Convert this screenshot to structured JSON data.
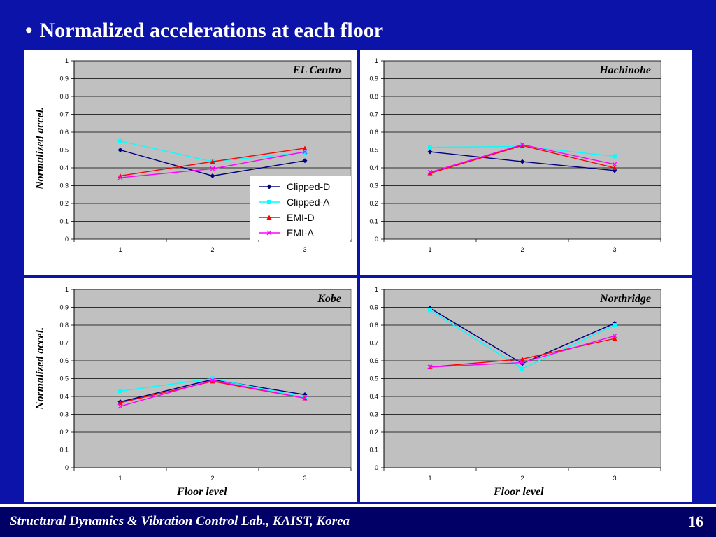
{
  "slide": {
    "title": "Normalized accelerations at each floor",
    "footer": "Structural Dynamics & Vibration Control Lab., KAIST, Korea",
    "page_number": "16",
    "y_axis_label": "Normalized accel.",
    "x_axis_label": "Floor level"
  },
  "colors": {
    "background": "#0b13a8",
    "footer_bg": "#000066",
    "plot_bg": "#c0c0c0"
  },
  "legend": {
    "entries": [
      "Clipped-D",
      "Clipped-A",
      "EMI-D",
      "EMI-A"
    ]
  },
  "chart_data": [
    {
      "type": "line",
      "title": "EL Centro",
      "categories": [
        "1",
        "2",
        "3"
      ],
      "ylim": [
        0,
        1
      ],
      "yticks": [
        "0",
        "0.1",
        "0.2",
        "0.3",
        "0.4",
        "0.5",
        "0.6",
        "0.7",
        "0.8",
        "0.9",
        "1"
      ],
      "grid": true,
      "legend_position": "bottom-right",
      "series": [
        {
          "name": "Clipped-D",
          "color": "#000080",
          "marker": "diamond",
          "values": [
            0.5,
            0.355,
            0.44
          ]
        },
        {
          "name": "Clipped-A",
          "color": "#00ffff",
          "marker": "square",
          "values": [
            0.55,
            0.435,
            0.485
          ]
        },
        {
          "name": "EMI-D",
          "color": "#ff0000",
          "marker": "triangle",
          "values": [
            0.355,
            0.435,
            0.51
          ]
        },
        {
          "name": "EMI-A",
          "color": "#ff00ff",
          "marker": "x",
          "values": [
            0.345,
            0.395,
            0.49
          ]
        }
      ]
    },
    {
      "type": "line",
      "title": "Hachinohe",
      "categories": [
        "1",
        "2",
        "3"
      ],
      "ylim": [
        0,
        1
      ],
      "yticks": [
        "0",
        "0.1",
        "0.2",
        "0.3",
        "0.4",
        "0.5",
        "0.6",
        "0.7",
        "0.8",
        "0.9",
        "1"
      ],
      "grid": true,
      "series": [
        {
          "name": "Clipped-D",
          "color": "#000080",
          "marker": "diamond",
          "values": [
            0.49,
            0.435,
            0.385
          ]
        },
        {
          "name": "Clipped-A",
          "color": "#00ffff",
          "marker": "square",
          "values": [
            0.515,
            0.52,
            0.465
          ]
        },
        {
          "name": "EMI-D",
          "color": "#ff0000",
          "marker": "triangle",
          "values": [
            0.37,
            0.525,
            0.4
          ]
        },
        {
          "name": "EMI-A",
          "color": "#ff00ff",
          "marker": "x",
          "values": [
            0.375,
            0.53,
            0.42
          ]
        }
      ]
    },
    {
      "type": "line",
      "title": "Kobe",
      "categories": [
        "1",
        "2",
        "3"
      ],
      "ylim": [
        0,
        1
      ],
      "yticks": [
        "0",
        "0.1",
        "0.2",
        "0.3",
        "0.4",
        "0.5",
        "0.6",
        "0.7",
        "0.8",
        "0.9",
        "1"
      ],
      "grid": true,
      "series": [
        {
          "name": "Clipped-D",
          "color": "#000080",
          "marker": "diamond",
          "values": [
            0.37,
            0.495,
            0.41
          ]
        },
        {
          "name": "Clipped-A",
          "color": "#00ffff",
          "marker": "square",
          "values": [
            0.43,
            0.5,
            0.395
          ]
        },
        {
          "name": "EMI-D",
          "color": "#ff0000",
          "marker": "triangle",
          "values": [
            0.365,
            0.485,
            0.39
          ]
        },
        {
          "name": "EMI-A",
          "color": "#ff00ff",
          "marker": "x",
          "values": [
            0.345,
            0.49,
            0.39
          ]
        }
      ]
    },
    {
      "type": "line",
      "title": "Northridge",
      "categories": [
        "1",
        "2",
        "3"
      ],
      "ylim": [
        0,
        1
      ],
      "yticks": [
        "0",
        "0.1",
        "0.2",
        "0.3",
        "0.4",
        "0.5",
        "0.6",
        "0.7",
        "0.8",
        "0.9",
        "1"
      ],
      "grid": true,
      "series": [
        {
          "name": "Clipped-D",
          "color": "#000080",
          "marker": "diamond",
          "values": [
            0.895,
            0.585,
            0.81
          ]
        },
        {
          "name": "Clipped-A",
          "color": "#00ffff",
          "marker": "square",
          "values": [
            0.885,
            0.555,
            0.8
          ]
        },
        {
          "name": "EMI-D",
          "color": "#ff0000",
          "marker": "triangle",
          "values": [
            0.565,
            0.61,
            0.725
          ]
        },
        {
          "name": "EMI-A",
          "color": "#ff00ff",
          "marker": "x",
          "values": [
            0.565,
            0.59,
            0.74
          ]
        }
      ]
    }
  ]
}
